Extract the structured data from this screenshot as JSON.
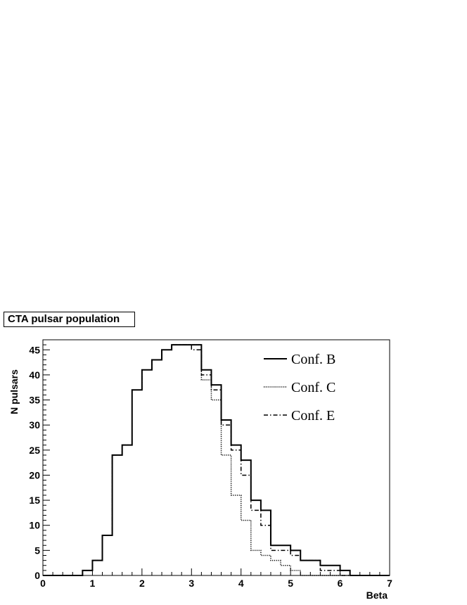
{
  "chart_data": {
    "type": "histogram",
    "title": "CTA pulsar population",
    "xlabel": "Beta",
    "ylabel": "N pulsars",
    "xlim": [
      0,
      7
    ],
    "ylim": [
      0,
      47
    ],
    "bin_width": 0.2,
    "x_ticks": [
      "0",
      "1",
      "2",
      "3",
      "4",
      "5",
      "6",
      "7"
    ],
    "y_ticks": [
      "0",
      "5",
      "10",
      "15",
      "20",
      "25",
      "30",
      "35",
      "40",
      "45"
    ],
    "grid": false,
    "legend_position": "top-right",
    "series": [
      {
        "name": "Conf. B",
        "style": "solid",
        "color": "#000000",
        "bin_edges": [
          0.0,
          0.2,
          0.4,
          0.6,
          0.8,
          1.0,
          1.2,
          1.4,
          1.6,
          1.8,
          2.0,
          2.2,
          2.4,
          2.6,
          2.8,
          3.0,
          3.2,
          3.4,
          3.6,
          3.8,
          4.0,
          4.2,
          4.4,
          4.6,
          4.8,
          5.0,
          5.2,
          5.4,
          5.6,
          5.8,
          6.0,
          6.2,
          6.4,
          6.6,
          6.8,
          7.0
        ],
        "counts": [
          0,
          0,
          0,
          0,
          1,
          3,
          8,
          24,
          26,
          37,
          41,
          43,
          45,
          46,
          46,
          46,
          41,
          38,
          31,
          26,
          23,
          15,
          13,
          6,
          6,
          5,
          3,
          3,
          2,
          2,
          1,
          0,
          0,
          0,
          0
        ]
      },
      {
        "name": "Conf. C",
        "style": "dotted",
        "color": "#000000",
        "bin_edges": [
          0.0,
          0.2,
          0.4,
          0.6,
          0.8,
          1.0,
          1.2,
          1.4,
          1.6,
          1.8,
          2.0,
          2.2,
          2.4,
          2.6,
          2.8,
          3.0,
          3.2,
          3.4,
          3.6,
          3.8,
          4.0,
          4.2,
          4.4,
          4.6,
          4.8,
          5.0,
          5.2,
          5.4,
          5.6,
          5.8,
          6.0,
          6.2,
          6.4,
          6.6,
          6.8,
          7.0
        ],
        "counts": [
          0,
          0,
          0,
          0,
          1,
          3,
          8,
          24,
          26,
          37,
          41,
          43,
          45,
          46,
          46,
          46,
          39,
          35,
          24,
          16,
          11,
          5,
          4,
          3,
          2,
          1,
          0,
          0,
          0,
          0,
          0,
          0,
          0,
          0,
          0
        ]
      },
      {
        "name": "Conf. E",
        "style": "dash-dot",
        "color": "#000000",
        "bin_edges": [
          0.0,
          0.2,
          0.4,
          0.6,
          0.8,
          1.0,
          1.2,
          1.4,
          1.6,
          1.8,
          2.0,
          2.2,
          2.4,
          2.6,
          2.8,
          3.0,
          3.2,
          3.4,
          3.6,
          3.8,
          4.0,
          4.2,
          4.4,
          4.6,
          4.8,
          5.0,
          5.2,
          5.4,
          5.6,
          5.8,
          6.0,
          6.2,
          6.4,
          6.6,
          6.8,
          7.0
        ],
        "counts": [
          0,
          0,
          0,
          0,
          1,
          3,
          8,
          24,
          26,
          37,
          41,
          43,
          45,
          46,
          46,
          45,
          40,
          37,
          30,
          25,
          20,
          13,
          10,
          5,
          5,
          4,
          3,
          3,
          1,
          1,
          0,
          0,
          0,
          0,
          0
        ]
      }
    ]
  }
}
